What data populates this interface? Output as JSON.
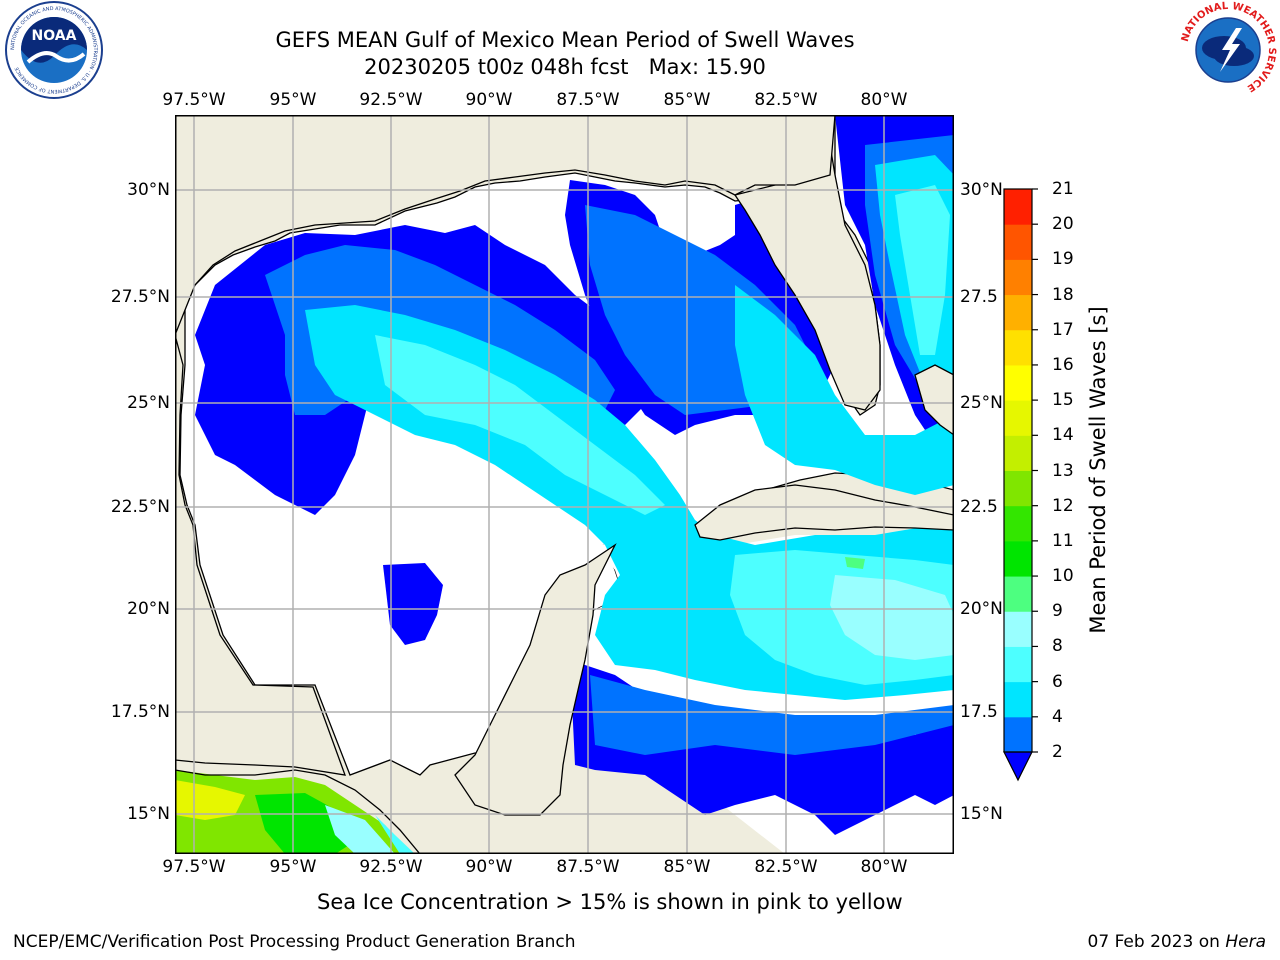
{
  "header": {
    "title_line1": "GEFS MEAN Gulf of Mexico Mean Period of Swell Waves",
    "title_line2": "20230205 t00z 048h fcst   Max: 15.90"
  },
  "map": {
    "lon_labels": [
      "97.5°W",
      "95°W",
      "92.5°W",
      "90°W",
      "87.5°W",
      "85°W",
      "82.5°W",
      "80°W"
    ],
    "lat_labels_left": [
      "30°N",
      "27.5°N",
      "25°N",
      "22.5°N",
      "20°N",
      "17.5°N",
      "15°N"
    ],
    "lat_labels_right": [
      "30°N",
      "27.5",
      "25°N",
      "22.5",
      "20°N",
      "17.5",
      "15°N"
    ],
    "colors": {
      "land": "#efedde",
      "water_none": "#ffffff",
      "grid": "#b0b0b0"
    }
  },
  "colorbar": {
    "label": "Mean Period of Swell Waves [s]",
    "ticks": [
      "2",
      "4",
      "6",
      "8",
      "9",
      "10",
      "11",
      "12",
      "13",
      "14",
      "15",
      "16",
      "17",
      "18",
      "19",
      "20",
      "21"
    ],
    "colors": [
      "#0000ff",
      "#0073ff",
      "#00e5ff",
      "#4dffff",
      "#99ffff",
      "#4dff80",
      "#00e500",
      "#33e600",
      "#80e600",
      "#c3ef00",
      "#e6f700",
      "#ffff00",
      "#ffe000",
      "#ffb000",
      "#ff8000",
      "#ff5500",
      "#ff2000",
      "#ff0000"
    ]
  },
  "notes": {
    "ice": "Sea Ice Concentration > 15% is shown in pink to yellow"
  },
  "footer": {
    "left": "NCEP/EMC/Verification Post Processing Product Generation Branch",
    "right_date": "07 Feb 2023 on ",
    "right_machine": "Hera"
  },
  "logos": {
    "noaa_text": "NOAA",
    "noaa_ring_text": "NATIONAL OCEANIC AND ATMOSPHERIC ADMINISTRATION · U.S. DEPARTMENT OF COMMERCE",
    "nws_ring_text": "NATIONAL WEATHER SERVICE"
  }
}
